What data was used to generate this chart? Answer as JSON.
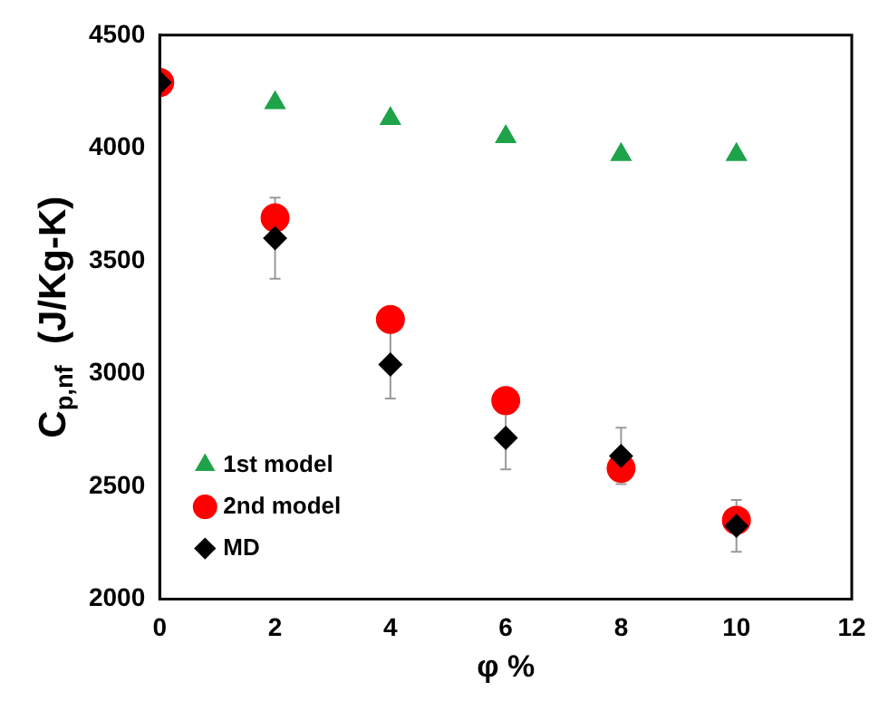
{
  "chart_data": {
    "type": "scatter",
    "xlabel": "φ %",
    "ylabel": "C$_{p,nf}$  (J/Kg-K)",
    "x": [
      0,
      2,
      4,
      6,
      8,
      10
    ],
    "series": [
      {
        "name": "1st model",
        "color": "#1ea34a",
        "marker": "triangle",
        "values": [
          null,
          4200,
          4130,
          4050,
          3970,
          3970
        ]
      },
      {
        "name": "2nd model",
        "color": "#ff0000",
        "marker": "circle",
        "values": [
          4290,
          3690,
          3240,
          2880,
          2580,
          2350
        ]
      },
      {
        "name": "MD",
        "color": "#000000",
        "marker": "diamond",
        "values": [
          4290,
          3600,
          3040,
          2715,
          2635,
          2325
        ],
        "errors": [
          null,
          180,
          150,
          140,
          125,
          115
        ]
      }
    ],
    "xlim": [
      0,
      12
    ],
    "xticks": [
      0,
      2,
      4,
      6,
      8,
      10,
      12
    ],
    "ylim": [
      2000,
      4500
    ],
    "yticks": [
      2000,
      2500,
      3000,
      3500,
      4000,
      4500
    ],
    "grid": false,
    "legend": "bottom left"
  }
}
